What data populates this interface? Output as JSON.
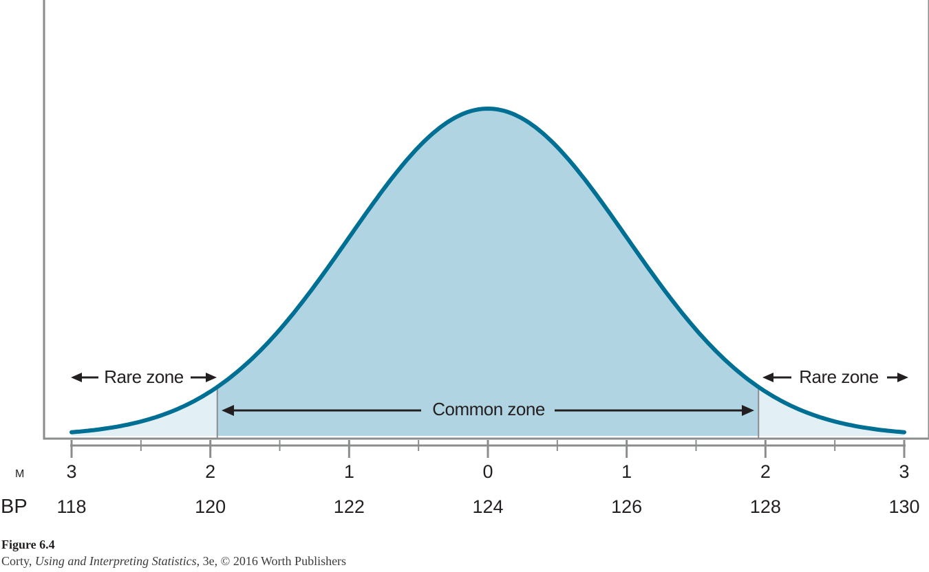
{
  "chart_data": {
    "type": "area",
    "distribution": "normal",
    "mean": 124,
    "sd": 2,
    "bp_ticks": [
      118,
      120,
      122,
      124,
      126,
      128,
      130
    ],
    "m_tick_labels": [
      "3",
      "2",
      "1",
      "0",
      "1",
      "2",
      "3"
    ],
    "m_row_label": "M",
    "bp_row_label": "BP",
    "common_zone": {
      "from": 120.1,
      "to": 127.9,
      "label": "Common zone"
    },
    "rare_zones": [
      {
        "side": "left",
        "label": "Rare zone"
      },
      {
        "side": "right",
        "label": "Rare zone"
      }
    ],
    "colors": {
      "curve": "#006f94",
      "common_fill": "#b0d4e2",
      "rare_fill": "#e2f0f5"
    }
  },
  "caption": {
    "figure_label": "Figure 6.4",
    "credit_author": "Corty, ",
    "credit_title": "Using and Interpreting Statistics",
    "credit_rest": ", 3e, © 2016 Worth Publishers"
  }
}
